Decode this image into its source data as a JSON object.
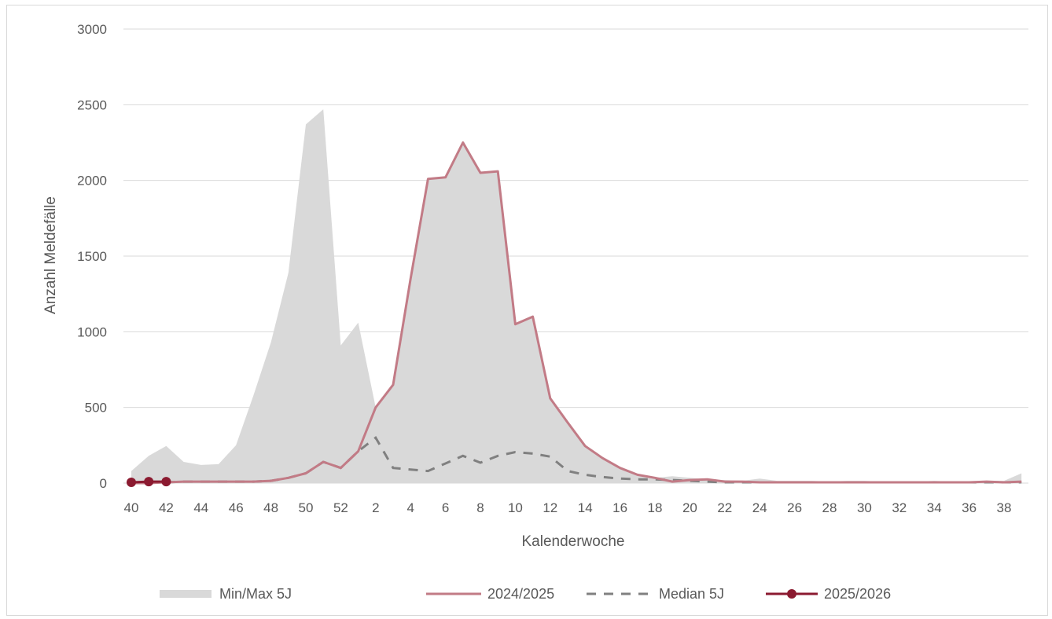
{
  "chart_data": {
    "type": "area",
    "xlabel": "Kalenderwoche",
    "ylabel": "Anzahl Meldefälle",
    "ylim": [
      0,
      3000
    ],
    "yticks": [
      0,
      500,
      1000,
      1500,
      2000,
      2500,
      3000
    ],
    "yticklabels": [
      "0",
      "500",
      "1000",
      "1500",
      "2000",
      "2500",
      "3000"
    ],
    "grid": true,
    "legend_position": "bottom",
    "weeks": [
      40,
      41,
      42,
      43,
      44,
      45,
      46,
      47,
      48,
      49,
      50,
      51,
      52,
      1,
      2,
      3,
      4,
      5,
      6,
      7,
      8,
      9,
      10,
      11,
      12,
      13,
      14,
      15,
      16,
      17,
      18,
      19,
      20,
      21,
      22,
      23,
      24,
      25,
      26,
      27,
      28,
      29,
      30,
      31,
      32,
      33,
      34,
      35,
      36,
      37,
      38,
      39
    ],
    "x_tick_labels": [
      "40",
      "42",
      "44",
      "46",
      "48",
      "50",
      "52",
      "2",
      "4",
      "6",
      "8",
      "10",
      "12",
      "14",
      "16",
      "18",
      "20",
      "22",
      "24",
      "26",
      "28",
      "30",
      "32",
      "34",
      "36",
      "38"
    ],
    "series": [
      {
        "name": "Min/Max 5J",
        "kind": "band",
        "color": "#d9d9d9",
        "min": [
          0,
          0,
          0,
          0,
          0,
          0,
          0,
          0,
          0,
          0,
          0,
          0,
          0,
          0,
          0,
          0,
          0,
          0,
          0,
          0,
          0,
          0,
          0,
          0,
          0,
          0,
          0,
          0,
          0,
          0,
          0,
          0,
          0,
          0,
          0,
          0,
          0,
          0,
          0,
          0,
          0,
          0,
          0,
          0,
          0,
          0,
          0,
          0,
          0,
          0,
          0,
          0
        ],
        "max": [
          80,
          180,
          245,
          140,
          120,
          125,
          250,
          580,
          930,
          1390,
          2370,
          2470,
          910,
          1060,
          500,
          650,
          1350,
          2010,
          2020,
          2250,
          2050,
          2060,
          1050,
          1100,
          560,
          400,
          245,
          165,
          100,
          55,
          35,
          45,
          35,
          25,
          20,
          15,
          30,
          15,
          15,
          15,
          10,
          15,
          15,
          10,
          10,
          10,
          15,
          10,
          10,
          15,
          15,
          65
        ]
      },
      {
        "name": "2024/2025",
        "kind": "line",
        "color": "#c27b86",
        "values": [
          0,
          0,
          5,
          10,
          10,
          10,
          10,
          10,
          15,
          35,
          65,
          140,
          100,
          210,
          500,
          650,
          1350,
          2010,
          2020,
          2250,
          2050,
          2060,
          1050,
          1100,
          560,
          400,
          245,
          165,
          100,
          55,
          35,
          10,
          20,
          25,
          10,
          10,
          5,
          5,
          5,
          5,
          5,
          5,
          5,
          5,
          5,
          5,
          5,
          5,
          5,
          10,
          5,
          10
        ]
      },
      {
        "name": "Median 5J",
        "kind": "dashed",
        "color": "#808080",
        "values": [
          5,
          5,
          5,
          10,
          10,
          10,
          10,
          10,
          15,
          35,
          65,
          140,
          100,
          210,
          300,
          100,
          90,
          80,
          130,
          180,
          135,
          180,
          205,
          195,
          175,
          80,
          55,
          40,
          30,
          25,
          25,
          20,
          15,
          10,
          5,
          5,
          5,
          5,
          5,
          5,
          5,
          5,
          5,
          5,
          5,
          5,
          5,
          5,
          5,
          5,
          5,
          5
        ]
      },
      {
        "name": "2025/2026",
        "kind": "marker-line",
        "color": "#8b1a30",
        "values": [
          5,
          10,
          10
        ]
      }
    ]
  }
}
